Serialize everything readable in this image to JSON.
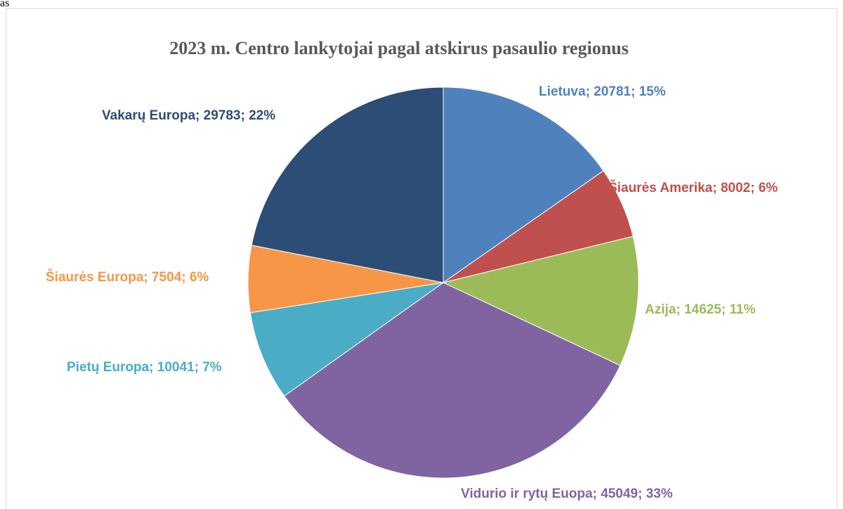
{
  "page_label": "as",
  "chart_data": {
    "type": "pie",
    "title": "2023 m. Centro lankytojai pagal atskirus pasaulio regionus",
    "values": [
      20781,
      8002,
      14625,
      45049,
      10041,
      7504,
      29783
    ],
    "value_labels": [
      "Lietuva; 20781; 15%",
      "Šiaurės Amerika; 8002; 6%",
      "Azija; 14625; 11%",
      "Vidurio ir rytų Euopa; 45049; 33%",
      "Pietų Europa; 10041; 7%",
      "Šiaurės Europa; 7504; 6%",
      "Vakarų Europa; 29783; 22%"
    ],
    "colors": [
      "#4f81bd",
      "#c0504d",
      "#9bbb59",
      "#8064a2",
      "#4bacc6",
      "#f79646",
      "#2c4d75"
    ]
  }
}
